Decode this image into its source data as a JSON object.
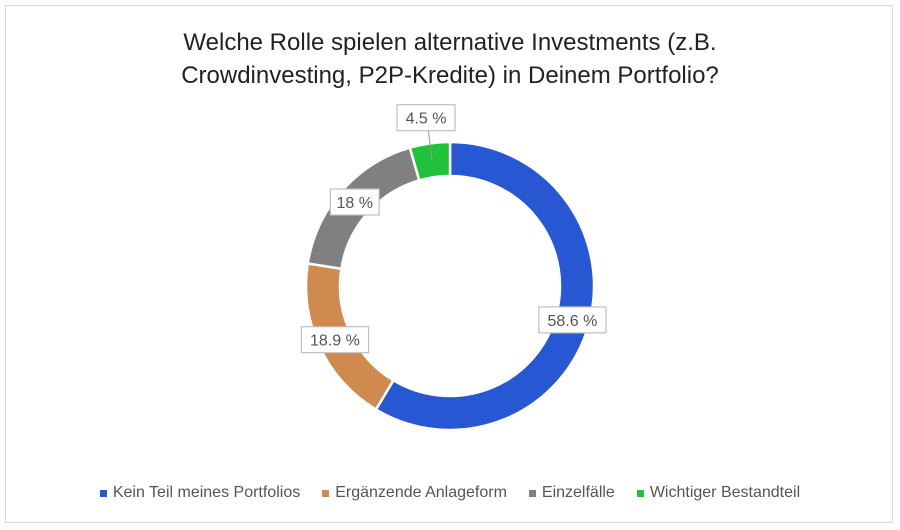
{
  "chart_data": {
    "type": "pie",
    "variant": "donut",
    "title": "Welche Rolle spielen alternative Investments (z.B. Crowdinvesting, P2P-Kredite) in Deinem Portfolio?",
    "title_lines": [
      "Welche Rolle spielen alternative Investments (z.B.",
      "Crowdinvesting, P2P-Kredite) in Deinem Portfolio?"
    ],
    "categories": [
      "Kein Teil meines Portfolios",
      "Ergänzende Anlageform",
      "Einzelfälle",
      "Wichtiger Bestandteil"
    ],
    "values": [
      58.6,
      18.9,
      18,
      4.5
    ],
    "data_labels": [
      "58.6 %",
      "18.9 %",
      "18 %",
      "4.5 %"
    ],
    "colors": [
      "#2857d4",
      "#d08a4e",
      "#808080",
      "#1ec33a"
    ],
    "legend_position": "bottom"
  }
}
